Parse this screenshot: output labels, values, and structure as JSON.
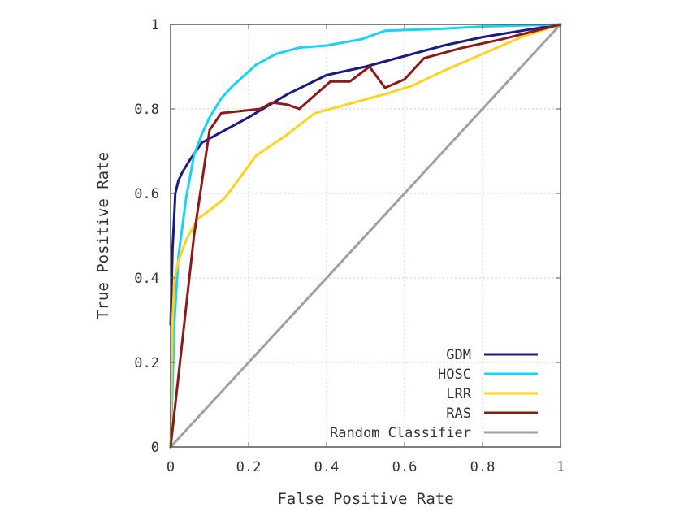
{
  "chart_data": {
    "type": "line",
    "title": "",
    "xlabel": "False Positive Rate",
    "ylabel": "True Positive Rate",
    "xlim": [
      0,
      1
    ],
    "ylim": [
      0,
      1
    ],
    "x_ticks": [
      "0",
      "0.2",
      "0.4",
      "0.6",
      "0.8",
      "1"
    ],
    "y_ticks": [
      "0",
      "0.2",
      "0.4",
      "0.6",
      "0.8",
      "1"
    ],
    "grid": true,
    "legend_position": "bottom-right",
    "series": [
      {
        "name": "GDM",
        "color": "#1a1a80",
        "x": [
          0,
          0.005,
          0.008,
          0.012,
          0.02,
          0.03,
          0.05,
          0.08,
          0.12,
          0.2,
          0.3,
          0.4,
          0.5,
          0.6,
          0.7,
          0.8,
          0.9,
          1.0
        ],
        "y": [
          0.29,
          0.47,
          0.52,
          0.6,
          0.63,
          0.65,
          0.68,
          0.72,
          0.74,
          0.78,
          0.835,
          0.88,
          0.9,
          0.925,
          0.95,
          0.97,
          0.985,
          1.0
        ]
      },
      {
        "name": "HOSC",
        "color": "#19d3f3",
        "x": [
          0,
          0.01,
          0.02,
          0.04,
          0.06,
          0.08,
          0.1,
          0.13,
          0.16,
          0.22,
          0.27,
          0.33,
          0.4,
          0.49,
          0.55,
          0.7,
          0.8,
          1.0
        ],
        "y": [
          0,
          0.3,
          0.45,
          0.59,
          0.69,
          0.74,
          0.78,
          0.825,
          0.855,
          0.905,
          0.93,
          0.945,
          0.95,
          0.965,
          0.985,
          0.99,
          0.995,
          1.0
        ]
      },
      {
        "name": "LRR",
        "color": "#ffd21f",
        "x": [
          0,
          0.005,
          0.01,
          0.02,
          0.04,
          0.07,
          0.1,
          0.14,
          0.22,
          0.3,
          0.37,
          0.45,
          0.55,
          0.62,
          0.7,
          0.8,
          0.9,
          1.0
        ],
        "y": [
          0,
          0.3,
          0.4,
          0.44,
          0.49,
          0.54,
          0.56,
          0.59,
          0.69,
          0.74,
          0.79,
          0.81,
          0.835,
          0.855,
          0.89,
          0.93,
          0.97,
          1.0
        ]
      },
      {
        "name": "RAS",
        "color": "#8b1a1a",
        "x": [
          0,
          0.03,
          0.06,
          0.1,
          0.13,
          0.23,
          0.26,
          0.3,
          0.33,
          0.41,
          0.46,
          0.51,
          0.55,
          0.6,
          0.65,
          0.75,
          0.85,
          1.0
        ],
        "y": [
          0,
          0.25,
          0.5,
          0.75,
          0.79,
          0.8,
          0.815,
          0.81,
          0.8,
          0.865,
          0.865,
          0.9,
          0.85,
          0.87,
          0.92,
          0.945,
          0.965,
          1.0
        ]
      },
      {
        "name": "Random Classifier",
        "color": "#a0a0a0",
        "x": [
          0,
          1
        ],
        "y": [
          0,
          1
        ]
      }
    ]
  }
}
